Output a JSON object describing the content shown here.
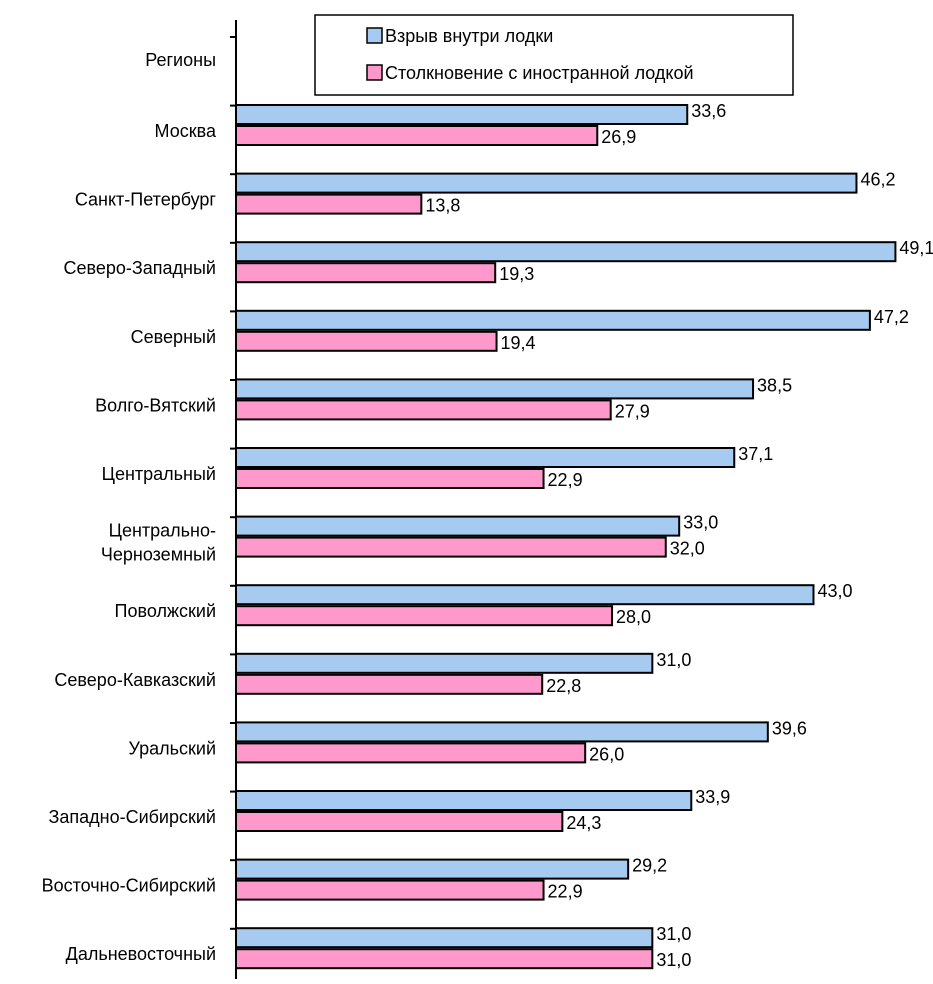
{
  "chart_data": {
    "type": "bar",
    "orientation": "horizontal",
    "category_header": "Регионы",
    "categories": [
      [
        "Москва"
      ],
      [
        "Санкт-Петербург"
      ],
      [
        "Северо-Западный"
      ],
      [
        "Северный"
      ],
      [
        "Волго-Вятский"
      ],
      [
        "Центральный"
      ],
      [
        "Центрально-",
        "Черноземный"
      ],
      [
        "Поволжский"
      ],
      [
        "Северо-Кавказский"
      ],
      [
        "Уральский"
      ],
      [
        "Западно-Сибирский"
      ],
      [
        "Восточно-Сибирский"
      ],
      [
        "Дальневосточный"
      ]
    ],
    "series": [
      {
        "name": "Взрыв внутри лодки",
        "color": "#a6caf0",
        "values": [
          33.6,
          46.2,
          49.1,
          47.2,
          38.5,
          37.1,
          33.0,
          43.0,
          31.0,
          39.6,
          33.9,
          29.2,
          31.0
        ],
        "labels": [
          "33,6",
          "46,2",
          "49,1",
          "47,2",
          "38,5",
          "37,1",
          "33,0",
          "43,0",
          "31,0",
          "39,6",
          "33,9",
          "29,2",
          "31,0"
        ]
      },
      {
        "name": "Столкновение с иностранной лодкой",
        "color": "#ff99cc",
        "values": [
          26.9,
          13.8,
          19.3,
          19.4,
          27.9,
          22.9,
          32.0,
          28.0,
          22.8,
          26.0,
          24.3,
          22.9,
          31.0
        ],
        "labels": [
          "26,9",
          "13,8",
          "19,3",
          "19,4",
          "27,9",
          "22,9",
          "32,0",
          "28,0",
          "22,8",
          "26,0",
          "24,3",
          "22,9",
          "31,0"
        ]
      }
    ],
    "xlim": [
      0,
      50
    ],
    "grid": false,
    "legend_position": "top"
  }
}
